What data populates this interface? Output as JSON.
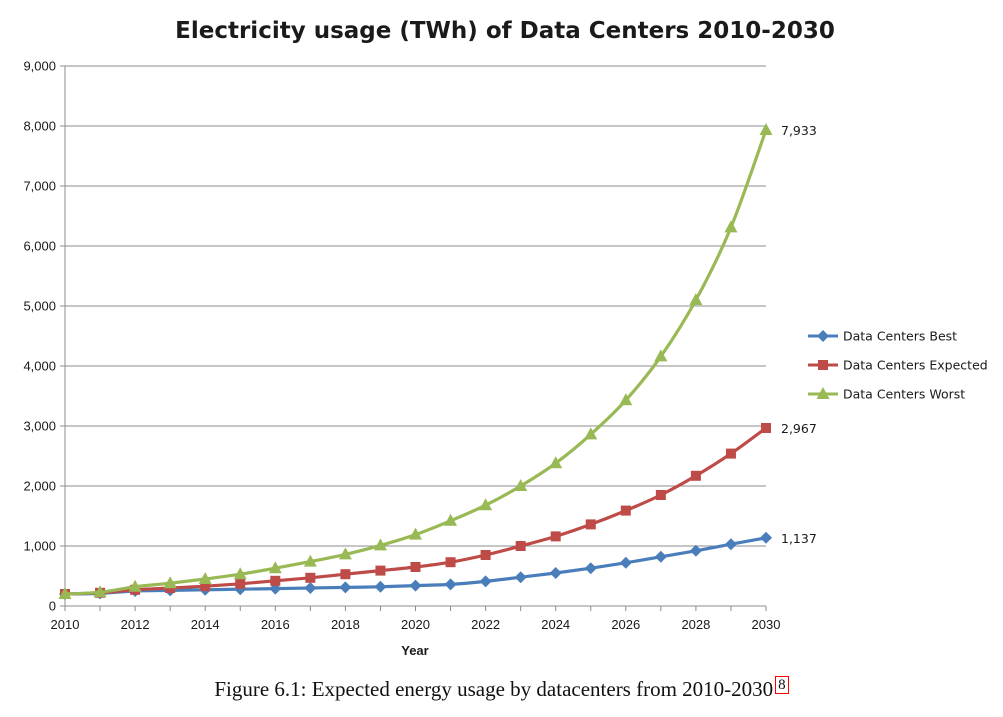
{
  "chart_data": {
    "type": "line",
    "title": "Electricity usage (TWh) of Data Centers 2010-2030",
    "xlabel": "Year",
    "ylabel": "",
    "x": [
      2010,
      2011,
      2012,
      2013,
      2014,
      2015,
      2016,
      2017,
      2018,
      2019,
      2020,
      2021,
      2022,
      2023,
      2024,
      2025,
      2026,
      2027,
      2028,
      2029,
      2030
    ],
    "xlim": [
      2010,
      2030
    ],
    "xticks": [
      "2010",
      "2012",
      "2014",
      "2016",
      "2018",
      "2020",
      "2022",
      "2024",
      "2026",
      "2028",
      "2030"
    ],
    "ylim": [
      0,
      9000
    ],
    "yticks": [
      "0",
      "1,000",
      "2,000",
      "3,000",
      "4,000",
      "5,000",
      "6,000",
      "7,000",
      "8,000",
      "9,000"
    ],
    "grid": "horizontal",
    "legend_position": "right",
    "series": [
      {
        "name": "Data Centers Best",
        "color": "#4a7ebb",
        "marker": "diamond",
        "values": [
          200,
          210,
          250,
          260,
          270,
          280,
          290,
          300,
          310,
          320,
          340,
          360,
          410,
          480,
          550,
          630,
          720,
          820,
          920,
          1030,
          1137
        ],
        "end_label": "1,137"
      },
      {
        "name": "Data Centers Expected",
        "color": "#be4b48",
        "marker": "square",
        "values": [
          200,
          220,
          270,
          300,
          330,
          370,
          420,
          470,
          530,
          590,
          650,
          730,
          850,
          1000,
          1160,
          1360,
          1590,
          1850,
          2170,
          2540,
          2967
        ],
        "end_label": "2,967"
      },
      {
        "name": "Data Centers Worst",
        "color": "#98b954",
        "marker": "triangle",
        "values": [
          200,
          230,
          320,
          380,
          450,
          530,
          630,
          740,
          860,
          1010,
          1190,
          1420,
          1680,
          2000,
          2380,
          2860,
          3430,
          4160,
          5100,
          6310,
          7933
        ],
        "end_label": "7,933"
      }
    ]
  },
  "caption": {
    "text": "Figure 6.1: Expected energy usage by datacenters from 2010-2030",
    "footnote": "8"
  }
}
